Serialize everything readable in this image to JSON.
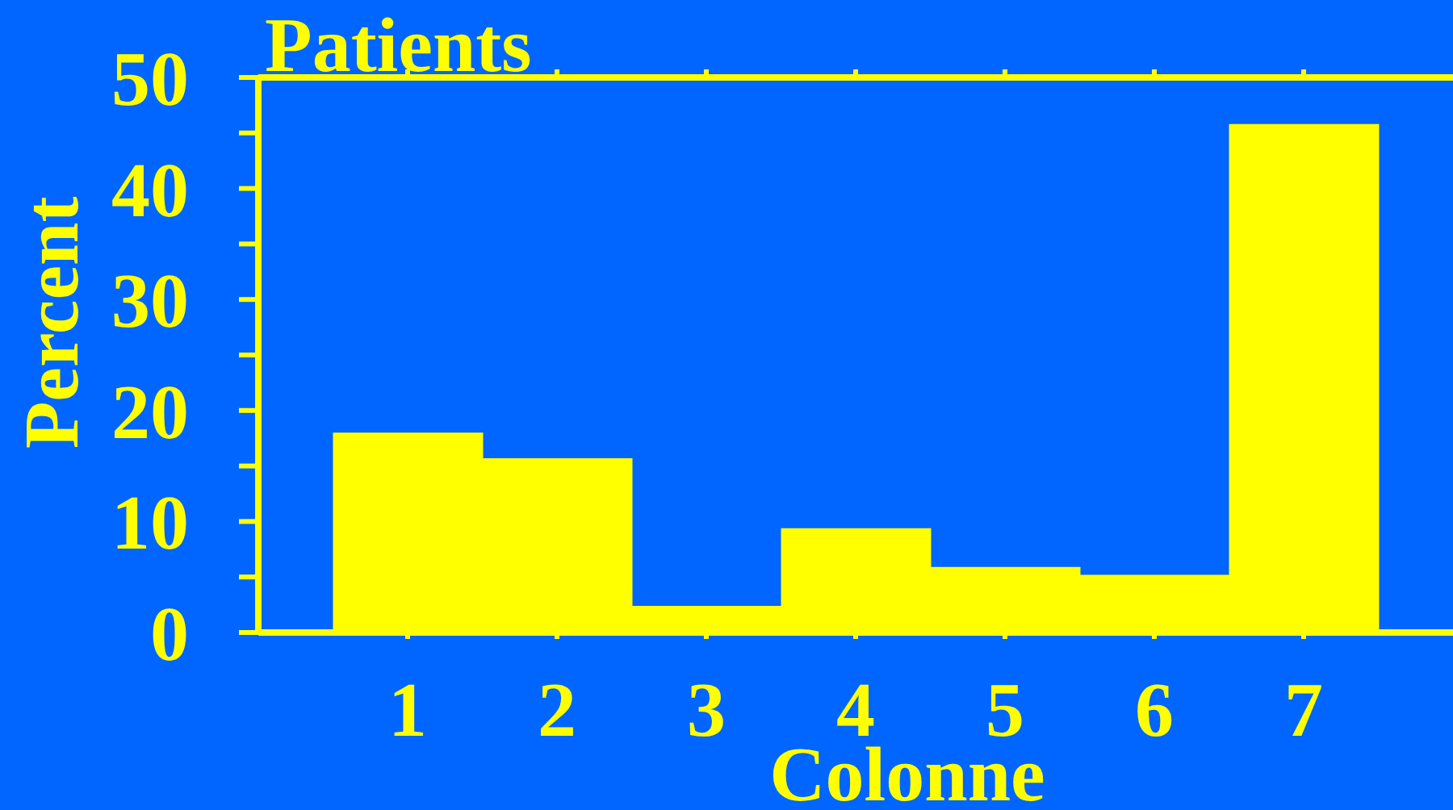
{
  "chart_data": {
    "type": "bar",
    "title": "Patients",
    "xlabel": "Colonne",
    "ylabel": "Percent",
    "categories": [
      "1",
      "2",
      "3",
      "4",
      "5",
      "6",
      "7"
    ],
    "values": [
      18,
      15.7,
      2.4,
      9.4,
      5.9,
      5.2,
      45.8
    ],
    "color": "#ffff00",
    "ylim": [
      0,
      50
    ],
    "yticks": [
      0,
      {
        "value": 5,
        "label": null
      },
      10,
      {
        "value": 15,
        "label": null
      },
      20,
      {
        "value": 25,
        "label": null
      },
      30,
      {
        "value": 35,
        "label": null
      },
      40,
      {
        "value": 45,
        "label": null
      },
      50
    ]
  }
}
